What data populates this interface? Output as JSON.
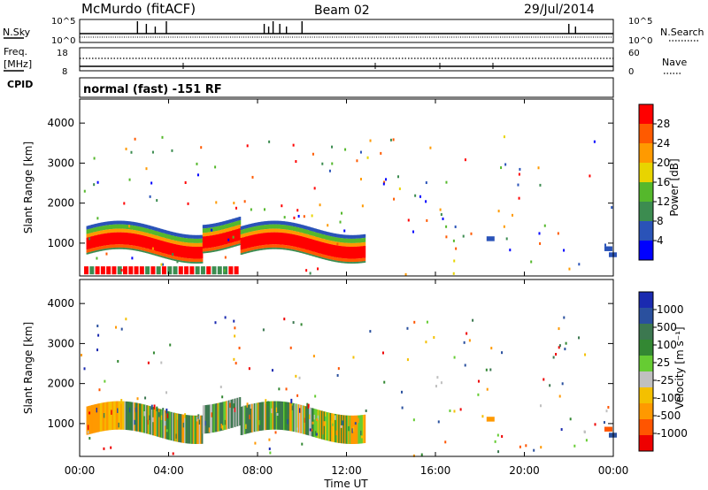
{
  "header": {
    "station": "McMurdo (fitACF)",
    "beam": "Beam 02",
    "date": "29/Jul/2014"
  },
  "status_panels": {
    "nsky_label": "N.Sky",
    "nsky_ticks": [
      "10^5",
      "10^0"
    ],
    "nsearch_label": "N.Search",
    "nsearch_ticks": [
      "10^5",
      "10^0"
    ],
    "freq_label": "Freq.",
    "freq_unit": "[MHz]",
    "freq_ticks": [
      "18",
      "8"
    ],
    "nave_label": "Nave",
    "nave_ticks": [
      "60",
      "0"
    ],
    "cpid_label": "CPID",
    "cpid_value": "normal (fast) -151 RF"
  },
  "colors": {
    "power_scale": [
      "#0000ff",
      "#2a53b8",
      "#3c8c50",
      "#55b82c",
      "#e8d400",
      "#ff9a00",
      "#ff5a00",
      "#ff0000"
    ],
    "velocity_scale": [
      "#ee0000",
      "#ff5500",
      "#ff9900",
      "#f4c000",
      "#c0c0c0",
      "#66cc33",
      "#338833",
      "#3c7850",
      "#2a509e",
      "#1a2ab0"
    ]
  },
  "chart_data": [
    {
      "type": "heatmap",
      "panel": "power",
      "title": "",
      "ylabel": "Slant Range [km]",
      "xlabel": "",
      "x_ticks": [
        "00:00",
        "04:00",
        "08:00",
        "12:00",
        "16:00",
        "20:00",
        "00:00"
      ],
      "x_range_hours": [
        0,
        24
      ],
      "y_ticks": [
        "1000",
        "2000",
        "3000",
        "4000"
      ],
      "ylim": [
        180,
        4600
      ],
      "colorbar_label": "Power [dB]",
      "colorbar_ticks": [
        "28",
        "24",
        "20",
        "16",
        "12",
        "8",
        "4"
      ],
      "colorbar_range": [
        0,
        32
      ],
      "main_echo": {
        "start_hour": 0.3,
        "end_hour": 12.8,
        "range_bottom_km": 650,
        "range_top_km": 1500,
        "peak_db": 30
      }
    },
    {
      "type": "heatmap",
      "panel": "velocity",
      "title": "",
      "ylabel": "Slant Range [km]",
      "xlabel": "Time UT",
      "x_ticks": [
        "00:00",
        "04:00",
        "08:00",
        "12:00",
        "16:00",
        "20:00",
        "00:00"
      ],
      "x_range_hours": [
        0,
        24
      ],
      "y_ticks": [
        "1000",
        "2000",
        "3000",
        "4000"
      ],
      "ylim": [
        180,
        4600
      ],
      "colorbar_label": "Velocity [m s⁻¹]",
      "colorbar_ticks": [
        "1000",
        "500",
        "100",
        "25",
        "-25",
        "-100",
        "-500",
        "-1000"
      ],
      "main_echo": {
        "start_hour": 0.3,
        "end_hour": 12.8,
        "range_bottom_km": 650,
        "range_top_km": 1500
      }
    }
  ]
}
